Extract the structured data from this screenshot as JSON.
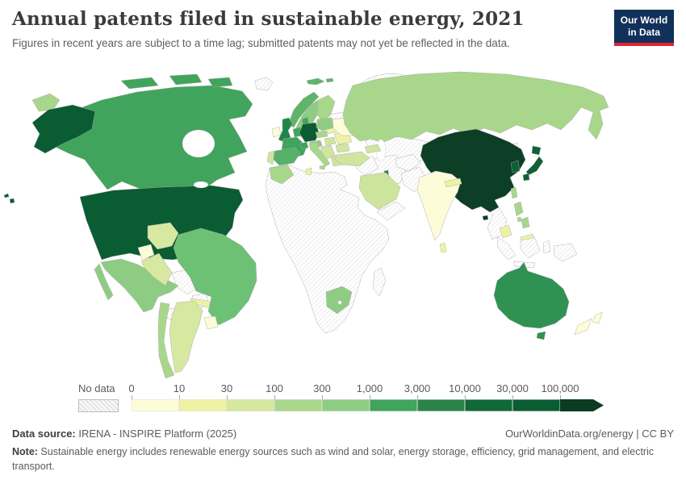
{
  "header": {
    "title": "Annual patents filed in sustainable energy, 2021",
    "subtitle": "Figures in recent years are subject to a time lag; submitted patents may not yet be reflected in the data.",
    "logo_line1": "Our World",
    "logo_line2": "in Data",
    "logo_bg_color": "#12315a",
    "logo_accent_color": "#e0232f"
  },
  "legend": {
    "no_data_label": "No data",
    "ticks": [
      "0",
      "10",
      "30",
      "100",
      "300",
      "1,000",
      "3,000",
      "10,000",
      "30,000",
      "100,000"
    ],
    "colors": [
      "#fdfcd9",
      "#eef2a3",
      "#d7e8a0",
      "#a8d78b",
      "#8fcc83",
      "#41a45d",
      "#2b8447",
      "#0f6937",
      "#0a5c33"
    ],
    "arrow_color": "#0c3b23"
  },
  "chart_data": {
    "type": "choropleth-map",
    "title": "Annual patents filed in sustainable energy, 2021",
    "unit": "patents filed per year",
    "scale_type": "log-binned",
    "bins": [
      "0",
      "10",
      "30",
      "100",
      "300",
      "1,000",
      "3,000",
      "10,000",
      "30,000",
      "100,000"
    ],
    "bin_colors": [
      "#fdfcd9",
      "#eef2a3",
      "#d7e8a0",
      "#a8d78b",
      "#8fcc83",
      "#41a45d",
      "#2b8447",
      "#0f6937",
      "#0a5c33",
      "#0c3b23"
    ],
    "no_data_style": "diagonal-hatch",
    "regions_by_band": {
      "100,000+": [
        "China"
      ],
      "30,000-100,000": [
        "United States",
        "Germany"
      ],
      "10,000-30,000": [
        "Japan",
        "South Korea"
      ],
      "3,000-10,000": [
        "United Kingdom",
        "Australia",
        "Israel"
      ],
      "1,000-3,000": [
        "Canada",
        "France",
        "Denmark",
        "Netherlands",
        "Switzerland",
        "Spain",
        "Norway"
      ],
      "300-1,000": [
        "Brazil",
        "Mexico",
        "Sweden",
        "South Africa",
        "Poland",
        "Austria"
      ],
      "100-300": [
        "Russia",
        "Italy",
        "Chile",
        "Finland",
        "Morocco",
        "Philippines",
        "Taiwan",
        "Czechia"
      ],
      "30-100": [
        "Argentina",
        "Colombia",
        "Peru",
        "Turkey",
        "Saudi Arabia",
        "Portugal",
        "Greece",
        "Hungary",
        "Balkans",
        "Caucasus"
      ],
      "10-30": [
        "Cuba",
        "Malaysia",
        "Nepal",
        "Sri Lanka",
        "Romania",
        "Baltic states",
        "Tunisia",
        "Hispaniola"
      ],
      "0-10": [
        "India",
        "Ukraine",
        "Ireland",
        "New Zealand",
        "Ecuador",
        "Uruguay"
      ],
      "no_data": [
        "Greenland",
        "Iceland",
        "most of Africa",
        "Madagascar",
        "Iran",
        "Pakistan",
        "Afghanistan",
        "Kazakhstan",
        "Central Asia",
        "Mongolia",
        "Belarus",
        "Venezuela",
        "Bolivia",
        "Paraguay",
        "Central America",
        "Myanmar",
        "Thailand",
        "Vietnam",
        "Indonesia",
        "New Guinea",
        "North Korea",
        "Iraq",
        "Syria",
        "Yemen",
        "Oman",
        "Bangladesh"
      ]
    }
  },
  "map": {
    "regions": [
      {
        "id": "united-states",
        "color": "#0a5c33"
      },
      {
        "id": "hawaii",
        "color": "#0a5c33"
      },
      {
        "id": "canada",
        "color": "#41a45d"
      },
      {
        "id": "greenland",
        "no_data": true
      },
      {
        "id": "mexico",
        "color": "#8fcc83"
      },
      {
        "id": "central-america",
        "no_data": true
      },
      {
        "id": "cuba",
        "color": "#eef2a3"
      },
      {
        "id": "hispaniola",
        "color": "#eef2a3"
      },
      {
        "id": "colombia",
        "color": "#d7e8a0"
      },
      {
        "id": "venezuela",
        "no_data": true
      },
      {
        "id": "guyanas",
        "no_data": true
      },
      {
        "id": "ecuador",
        "color": "#fdfcd9"
      },
      {
        "id": "peru",
        "color": "#d7e8a0"
      },
      {
        "id": "brazil",
        "color": "#6dc175"
      },
      {
        "id": "bolivia",
        "no_data": true
      },
      {
        "id": "paraguay",
        "no_data": true
      },
      {
        "id": "uruguay",
        "color": "#fdfcd9"
      },
      {
        "id": "argentina",
        "color": "#d7e8a0"
      },
      {
        "id": "chile",
        "color": "#a8d78b"
      },
      {
        "id": "iceland",
        "no_data": true
      },
      {
        "id": "svalbard",
        "color": "#5fb46a"
      },
      {
        "id": "norway",
        "color": "#5fb46a"
      },
      {
        "id": "sweden",
        "color": "#8fcc83"
      },
      {
        "id": "finland",
        "color": "#a8d78b"
      },
      {
        "id": "baltics",
        "color": "#eef2a3"
      },
      {
        "id": "united-kingdom",
        "color": "#1d8549"
      },
      {
        "id": "ireland",
        "color": "#fdfcd9"
      },
      {
        "id": "denmark",
        "color": "#41a45d"
      },
      {
        "id": "benelux",
        "color": "#41a45d"
      },
      {
        "id": "germany",
        "color": "#0a5c33"
      },
      {
        "id": "france",
        "color": "#41a45d"
      },
      {
        "id": "switzerland",
        "color": "#41a45d"
      },
      {
        "id": "austria",
        "color": "#8fcc83"
      },
      {
        "id": "spain",
        "color": "#55b167"
      },
      {
        "id": "portugal",
        "color": "#cfe5a0"
      },
      {
        "id": "italy",
        "color": "#a8d78b"
      },
      {
        "id": "poland",
        "color": "#8fcc83"
      },
      {
        "id": "czechia",
        "color": "#a8d78b"
      },
      {
        "id": "hungary",
        "color": "#cfe5a0"
      },
      {
        "id": "balkans",
        "color": "#cfe5a0"
      },
      {
        "id": "greece",
        "color": "#cfe5a0"
      },
      {
        "id": "romania",
        "color": "#eef2a3"
      },
      {
        "id": "bulgaria",
        "color": "#cfe5a0"
      },
      {
        "id": "belarus",
        "no_data": true
      },
      {
        "id": "ukraine",
        "color": "#fdfcd9"
      },
      {
        "id": "russia",
        "color": "#a8d78b"
      },
      {
        "id": "chukotka-wrap",
        "color": "#a8d78b"
      },
      {
        "id": "caucasus",
        "color": "#cfe5a0"
      },
      {
        "id": "turkey",
        "color": "#cfe5a0"
      },
      {
        "id": "syria-iraq",
        "no_data": true
      },
      {
        "id": "israel",
        "color": "#2b8447"
      },
      {
        "id": "saudi-arabia",
        "color": "#cde49c"
      },
      {
        "id": "yemen-oman",
        "no_data": true
      },
      {
        "id": "iran",
        "no_data": true
      },
      {
        "id": "afghanistan",
        "no_data": true
      },
      {
        "id": "pakistan",
        "no_data": true
      },
      {
        "id": "kazakhstan",
        "no_data": true
      },
      {
        "id": "central-asia",
        "no_data": true
      },
      {
        "id": "mongolia",
        "no_data": true
      },
      {
        "id": "china",
        "color": "#0d3e26"
      },
      {
        "id": "hainan",
        "color": "#0d3e26"
      },
      {
        "id": "taiwan",
        "color": "#a8d78b"
      },
      {
        "id": "north-korea",
        "no_data": true
      },
      {
        "id": "south-korea",
        "color": "#0d6135"
      },
      {
        "id": "japan",
        "color": "#0d6135"
      },
      {
        "id": "india",
        "color": "#fdfcd9"
      },
      {
        "id": "nepal",
        "color": "#eef2a3"
      },
      {
        "id": "sri-lanka",
        "color": "#eef2a3"
      },
      {
        "id": "bangladesh",
        "no_data": true
      },
      {
        "id": "indochina",
        "no_data": true
      },
      {
        "id": "malaysia",
        "color": "#eef2a3"
      },
      {
        "id": "indonesia",
        "no_data": true
      },
      {
        "id": "new-guinea",
        "no_data": true
      },
      {
        "id": "philippines",
        "color": "#a8d78b"
      },
      {
        "id": "africa",
        "no_data": true
      },
      {
        "id": "morocco",
        "color": "#a8d78b"
      },
      {
        "id": "tunisia",
        "color": "#eef2a3"
      },
      {
        "id": "south-africa",
        "color": "#8fcc83"
      },
      {
        "id": "madagascar",
        "no_data": true
      },
      {
        "id": "australia",
        "color": "#2f9152"
      },
      {
        "id": "tasmania",
        "color": "#2f9152"
      },
      {
        "id": "new-zealand",
        "color": "#fdfcd9"
      }
    ]
  },
  "footer": {
    "source_label": "Data source:",
    "source_text": " IRENA - INSPIRE Platform (2025)",
    "link_text": "OurWorldinData.org/energy | CC BY",
    "note_label": "Note:",
    "note_text": " Sustainable energy includes renewable energy sources such as wind and solar, energy storage, efficiency, grid management, and electric transport."
  }
}
